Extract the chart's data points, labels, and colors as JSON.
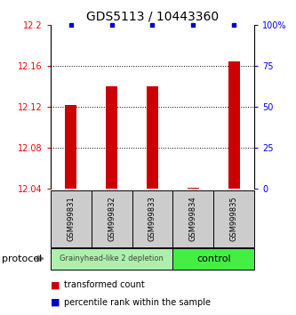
{
  "title": "GDS5113 / 10443360",
  "samples": [
    "GSM999831",
    "GSM999832",
    "GSM999833",
    "GSM999834",
    "GSM999835"
  ],
  "red_values": [
    12.122,
    12.14,
    12.14,
    12.041,
    12.165
  ],
  "blue_values": [
    100,
    100,
    100,
    100,
    100
  ],
  "ylim_left": [
    12.04,
    12.2
  ],
  "ylim_right": [
    0,
    100
  ],
  "yticks_left": [
    12.04,
    12.08,
    12.12,
    12.16,
    12.2
  ],
  "yticks_right": [
    0,
    25,
    50,
    75,
    100
  ],
  "ytick_labels_left": [
    "12.04",
    "12.08",
    "12.12",
    "12.16",
    "12.2"
  ],
  "ytick_labels_right": [
    "0",
    "25",
    "50",
    "75",
    "100%"
  ],
  "group1_label": "Grainyhead-like 2 depletion",
  "group2_label": "control",
  "group1_color": "#adf0ad",
  "group2_color": "#44ee44",
  "group1_samples": [
    0,
    1,
    2
  ],
  "group2_samples": [
    3,
    4
  ],
  "bar_color": "#cc0000",
  "dot_color": "#0000cc",
  "sample_box_color": "#cccccc",
  "grid_color": "#000000",
  "grid_yticks": [
    12.08,
    12.12,
    12.16
  ],
  "bar_width": 0.3,
  "title_fontsize": 10,
  "tick_fontsize": 7,
  "sample_fontsize": 6,
  "legend_fontsize": 7,
  "protocol_fontsize": 8,
  "group_label_fontsize": 6,
  "control_label_fontsize": 8
}
